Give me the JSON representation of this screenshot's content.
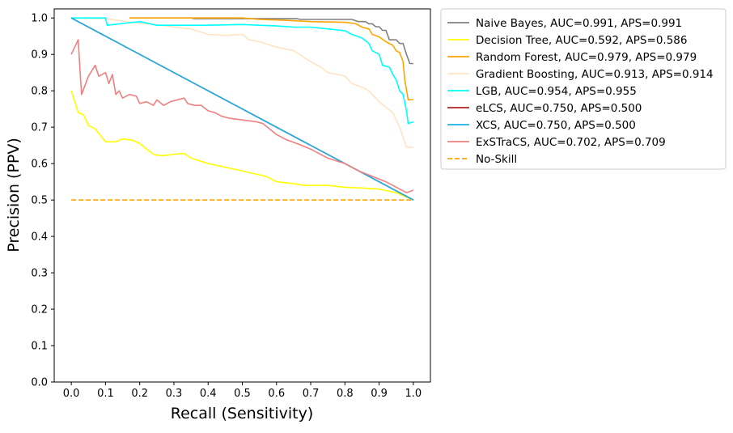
{
  "chart_data": {
    "type": "line",
    "title": "",
    "xlabel": "Recall (Sensitivity)",
    "ylabel": "Precision (PPV)",
    "xlim": [
      -0.05,
      1.05
    ],
    "ylim": [
      0.0,
      1.025
    ],
    "xticks": [
      "0.0",
      "0.1",
      "0.2",
      "0.3",
      "0.4",
      "0.5",
      "0.6",
      "0.7",
      "0.8",
      "0.9",
      "1.0"
    ],
    "yticks": [
      "0.0",
      "0.1",
      "0.2",
      "0.3",
      "0.4",
      "0.5",
      "0.6",
      "0.7",
      "0.8",
      "0.9",
      "1.0"
    ],
    "grid": false,
    "legend_position": "outside-upper-right",
    "series": [
      {
        "name": "Naive Bayes, AUC=0.991, APS=0.991",
        "color": "#808080",
        "dash": "solid",
        "points": [
          [
            0.17,
            1.0
          ],
          [
            0.35,
            1.0
          ],
          [
            0.36,
            0.998
          ],
          [
            0.66,
            0.998
          ],
          [
            0.67,
            0.996
          ],
          [
            0.82,
            0.996
          ],
          [
            0.84,
            0.99
          ],
          [
            0.86,
            0.99
          ],
          [
            0.87,
            0.984
          ],
          [
            0.88,
            0.984
          ],
          [
            0.89,
            0.976
          ],
          [
            0.9,
            0.976
          ],
          [
            0.91,
            0.966
          ],
          [
            0.92,
            0.966
          ],
          [
            0.93,
            0.94
          ],
          [
            0.95,
            0.94
          ],
          [
            0.96,
            0.93
          ],
          [
            0.97,
            0.93
          ],
          [
            0.98,
            0.9
          ],
          [
            0.99,
            0.875
          ],
          [
            1.0,
            0.875
          ]
        ]
      },
      {
        "name": "Decision Tree, AUC=0.592, APS=0.586",
        "color": "#ffff00",
        "dash": "solid",
        "points": [
          [
            0.0,
            0.8
          ],
          [
            0.01,
            0.77
          ],
          [
            0.02,
            0.74
          ],
          [
            0.035,
            0.735
          ],
          [
            0.05,
            0.705
          ],
          [
            0.07,
            0.695
          ],
          [
            0.1,
            0.66
          ],
          [
            0.13,
            0.66
          ],
          [
            0.15,
            0.668
          ],
          [
            0.18,
            0.664
          ],
          [
            0.2,
            0.655
          ],
          [
            0.22,
            0.64
          ],
          [
            0.24,
            0.626
          ],
          [
            0.26,
            0.622
          ],
          [
            0.28,
            0.623
          ],
          [
            0.3,
            0.626
          ],
          [
            0.33,
            0.628
          ],
          [
            0.35,
            0.615
          ],
          [
            0.4,
            0.6
          ],
          [
            0.45,
            0.59
          ],
          [
            0.5,
            0.58
          ],
          [
            0.52,
            0.575
          ],
          [
            0.57,
            0.565
          ],
          [
            0.6,
            0.55
          ],
          [
            0.65,
            0.545
          ],
          [
            0.68,
            0.54
          ],
          [
            0.7,
            0.54
          ],
          [
            0.75,
            0.54
          ],
          [
            0.8,
            0.535
          ],
          [
            0.85,
            0.533
          ],
          [
            0.9,
            0.53
          ],
          [
            0.95,
            0.52
          ],
          [
            1.0,
            0.5
          ]
        ]
      },
      {
        "name": "Random Forest, AUC=0.979, APS=0.979",
        "color": "#ffa500",
        "dash": "solid",
        "points": [
          [
            0.17,
            1.0
          ],
          [
            0.5,
            1.0
          ],
          [
            0.55,
            0.996
          ],
          [
            0.62,
            0.994
          ],
          [
            0.7,
            0.99
          ],
          [
            0.8,
            0.988
          ],
          [
            0.83,
            0.985
          ],
          [
            0.85,
            0.975
          ],
          [
            0.87,
            0.97
          ],
          [
            0.88,
            0.955
          ],
          [
            0.9,
            0.948
          ],
          [
            0.92,
            0.935
          ],
          [
            0.94,
            0.925
          ],
          [
            0.95,
            0.91
          ],
          [
            0.96,
            0.905
          ],
          [
            0.97,
            0.88
          ],
          [
            0.975,
            0.83
          ],
          [
            0.985,
            0.775
          ],
          [
            1.0,
            0.776
          ]
        ]
      },
      {
        "name": "Gradient Boosting, AUC=0.913, APS=0.914",
        "color": "#ffe4c4",
        "dash": "solid",
        "points": [
          [
            0.0,
            1.0
          ],
          [
            0.1,
            0.998
          ],
          [
            0.2,
            0.985
          ],
          [
            0.25,
            0.982
          ],
          [
            0.3,
            0.975
          ],
          [
            0.35,
            0.97
          ],
          [
            0.4,
            0.955
          ],
          [
            0.45,
            0.952
          ],
          [
            0.5,
            0.955
          ],
          [
            0.52,
            0.94
          ],
          [
            0.55,
            0.935
          ],
          [
            0.6,
            0.92
          ],
          [
            0.65,
            0.91
          ],
          [
            0.7,
            0.88
          ],
          [
            0.73,
            0.865
          ],
          [
            0.75,
            0.85
          ],
          [
            0.78,
            0.845
          ],
          [
            0.8,
            0.84
          ],
          [
            0.82,
            0.82
          ],
          [
            0.85,
            0.81
          ],
          [
            0.87,
            0.8
          ],
          [
            0.89,
            0.78
          ],
          [
            0.9,
            0.77
          ],
          [
            0.92,
            0.755
          ],
          [
            0.94,
            0.74
          ],
          [
            0.96,
            0.7
          ],
          [
            0.98,
            0.645
          ],
          [
            1.0,
            0.645
          ]
        ]
      },
      {
        "name": "LGB, AUC=0.954, APS=0.955",
        "color": "#00ffff",
        "dash": "solid",
        "points": [
          [
            0.0,
            1.0
          ],
          [
            0.1,
            1.0
          ],
          [
            0.105,
            0.98
          ],
          [
            0.15,
            0.985
          ],
          [
            0.2,
            0.99
          ],
          [
            0.25,
            0.98
          ],
          [
            0.3,
            0.98
          ],
          [
            0.4,
            0.98
          ],
          [
            0.5,
            0.982
          ],
          [
            0.55,
            0.98
          ],
          [
            0.6,
            0.978
          ],
          [
            0.65,
            0.975
          ],
          [
            0.7,
            0.975
          ],
          [
            0.75,
            0.97
          ],
          [
            0.8,
            0.965
          ],
          [
            0.82,
            0.955
          ],
          [
            0.85,
            0.945
          ],
          [
            0.87,
            0.93
          ],
          [
            0.88,
            0.91
          ],
          [
            0.9,
            0.9
          ],
          [
            0.91,
            0.87
          ],
          [
            0.93,
            0.865
          ],
          [
            0.94,
            0.845
          ],
          [
            0.95,
            0.83
          ],
          [
            0.96,
            0.8
          ],
          [
            0.97,
            0.79
          ],
          [
            0.98,
            0.745
          ],
          [
            0.985,
            0.71
          ],
          [
            1.0,
            0.715
          ]
        ]
      },
      {
        "name": "eLCS, AUC=0.750, APS=0.500",
        "color": "#b22222",
        "dash": "solid",
        "points": [
          [
            0.0,
            1.0
          ],
          [
            1.0,
            0.5
          ]
        ]
      },
      {
        "name": "XCS, AUC=0.750, APS=0.500",
        "color": "#1ab2e8",
        "dash": "solid",
        "points": [
          [
            0.0,
            1.0
          ],
          [
            1.0,
            0.5
          ]
        ]
      },
      {
        "name": "ExSTraCS, AUC=0.702, APS=0.709",
        "color": "#f08080",
        "dash": "solid",
        "points": [
          [
            0.0,
            0.9
          ],
          [
            0.02,
            0.94
          ],
          [
            0.03,
            0.79
          ],
          [
            0.05,
            0.84
          ],
          [
            0.07,
            0.87
          ],
          [
            0.08,
            0.84
          ],
          [
            0.1,
            0.85
          ],
          [
            0.11,
            0.82
          ],
          [
            0.12,
            0.845
          ],
          [
            0.13,
            0.79
          ],
          [
            0.14,
            0.8
          ],
          [
            0.15,
            0.78
          ],
          [
            0.17,
            0.79
          ],
          [
            0.19,
            0.785
          ],
          [
            0.2,
            0.765
          ],
          [
            0.22,
            0.77
          ],
          [
            0.24,
            0.76
          ],
          [
            0.25,
            0.775
          ],
          [
            0.27,
            0.76
          ],
          [
            0.29,
            0.77
          ],
          [
            0.31,
            0.775
          ],
          [
            0.33,
            0.78
          ],
          [
            0.34,
            0.765
          ],
          [
            0.36,
            0.76
          ],
          [
            0.38,
            0.76
          ],
          [
            0.4,
            0.745
          ],
          [
            0.42,
            0.74
          ],
          [
            0.44,
            0.73
          ],
          [
            0.46,
            0.725
          ],
          [
            0.5,
            0.72
          ],
          [
            0.54,
            0.715
          ],
          [
            0.56,
            0.71
          ],
          [
            0.58,
            0.695
          ],
          [
            0.6,
            0.68
          ],
          [
            0.63,
            0.665
          ],
          [
            0.66,
            0.655
          ],
          [
            0.7,
            0.64
          ],
          [
            0.75,
            0.615
          ],
          [
            0.8,
            0.6
          ],
          [
            0.84,
            0.58
          ],
          [
            0.88,
            0.565
          ],
          [
            0.92,
            0.55
          ],
          [
            0.96,
            0.53
          ],
          [
            0.98,
            0.52
          ],
          [
            1.0,
            0.527
          ]
        ]
      },
      {
        "name": "No-Skill",
        "color": "#ffa500",
        "dash": "dashed",
        "points": [
          [
            0.0,
            0.5
          ],
          [
            1.0,
            0.5
          ]
        ]
      }
    ]
  }
}
